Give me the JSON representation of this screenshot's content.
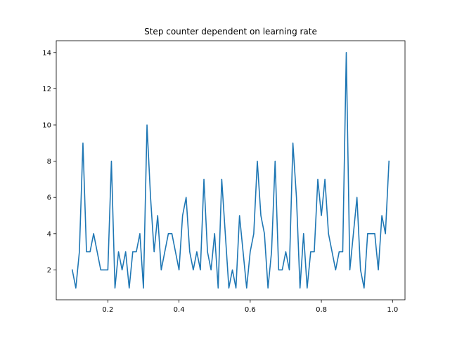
{
  "chart_data": {
    "type": "line",
    "title": "Step counter dependent on learning rate",
    "xlabel": "",
    "ylabel": "",
    "xlim": [
      0.055,
      1.035
    ],
    "ylim": [
      0.35,
      14.65
    ],
    "xticks": [
      0.2,
      0.4,
      0.6,
      0.8,
      1.0
    ],
    "xtick_labels": [
      "0.2",
      "0.4",
      "0.6",
      "0.8",
      "1.0"
    ],
    "yticks": [
      2,
      4,
      6,
      8,
      10,
      12,
      14
    ],
    "ytick_labels": [
      "2",
      "4",
      "6",
      "8",
      "10",
      "12",
      "14"
    ],
    "grid": false,
    "legend": "none",
    "line_color": "#1f77b4",
    "x": [
      0.1,
      0.11,
      0.12,
      0.13,
      0.14,
      0.15,
      0.16,
      0.17,
      0.18,
      0.19,
      0.2,
      0.21,
      0.22,
      0.23,
      0.24,
      0.25,
      0.26,
      0.27,
      0.28,
      0.29,
      0.3,
      0.31,
      0.32,
      0.33,
      0.34,
      0.35,
      0.36,
      0.37,
      0.38,
      0.39,
      0.4,
      0.41,
      0.42,
      0.43,
      0.44,
      0.45,
      0.46,
      0.47,
      0.48,
      0.49,
      0.5,
      0.51,
      0.52,
      0.53,
      0.54,
      0.55,
      0.56,
      0.57,
      0.58,
      0.59,
      0.6,
      0.61,
      0.62,
      0.63,
      0.64,
      0.65,
      0.66,
      0.67,
      0.68,
      0.69,
      0.7,
      0.71,
      0.72,
      0.73,
      0.74,
      0.75,
      0.76,
      0.77,
      0.78,
      0.79,
      0.8,
      0.81,
      0.82,
      0.83,
      0.84,
      0.85,
      0.86,
      0.87,
      0.88,
      0.89,
      0.9,
      0.91,
      0.92,
      0.93,
      0.94,
      0.95,
      0.96,
      0.97,
      0.98,
      0.99
    ],
    "series": [
      {
        "values": [
          2,
          1,
          3,
          9,
          3,
          3,
          4,
          3,
          2,
          2,
          2,
          8,
          1,
          3,
          2,
          3,
          1,
          3,
          3,
          4,
          1,
          10,
          6,
          3,
          5,
          2,
          3,
          4,
          4,
          3,
          2,
          5,
          6,
          3,
          2,
          3,
          2,
          7,
          3,
          2,
          4,
          1,
          7,
          4,
          1,
          2,
          1,
          5,
          3,
          1,
          3,
          4,
          8,
          5,
          4,
          1,
          3,
          8,
          2,
          2,
          3,
          2,
          9,
          6,
          1,
          4,
          1,
          3,
          3,
          7,
          5,
          7,
          4,
          3,
          2,
          3,
          3,
          14,
          2,
          4,
          6,
          2,
          1,
          4,
          4,
          4,
          2,
          5,
          4,
          8
        ]
      }
    ]
  }
}
